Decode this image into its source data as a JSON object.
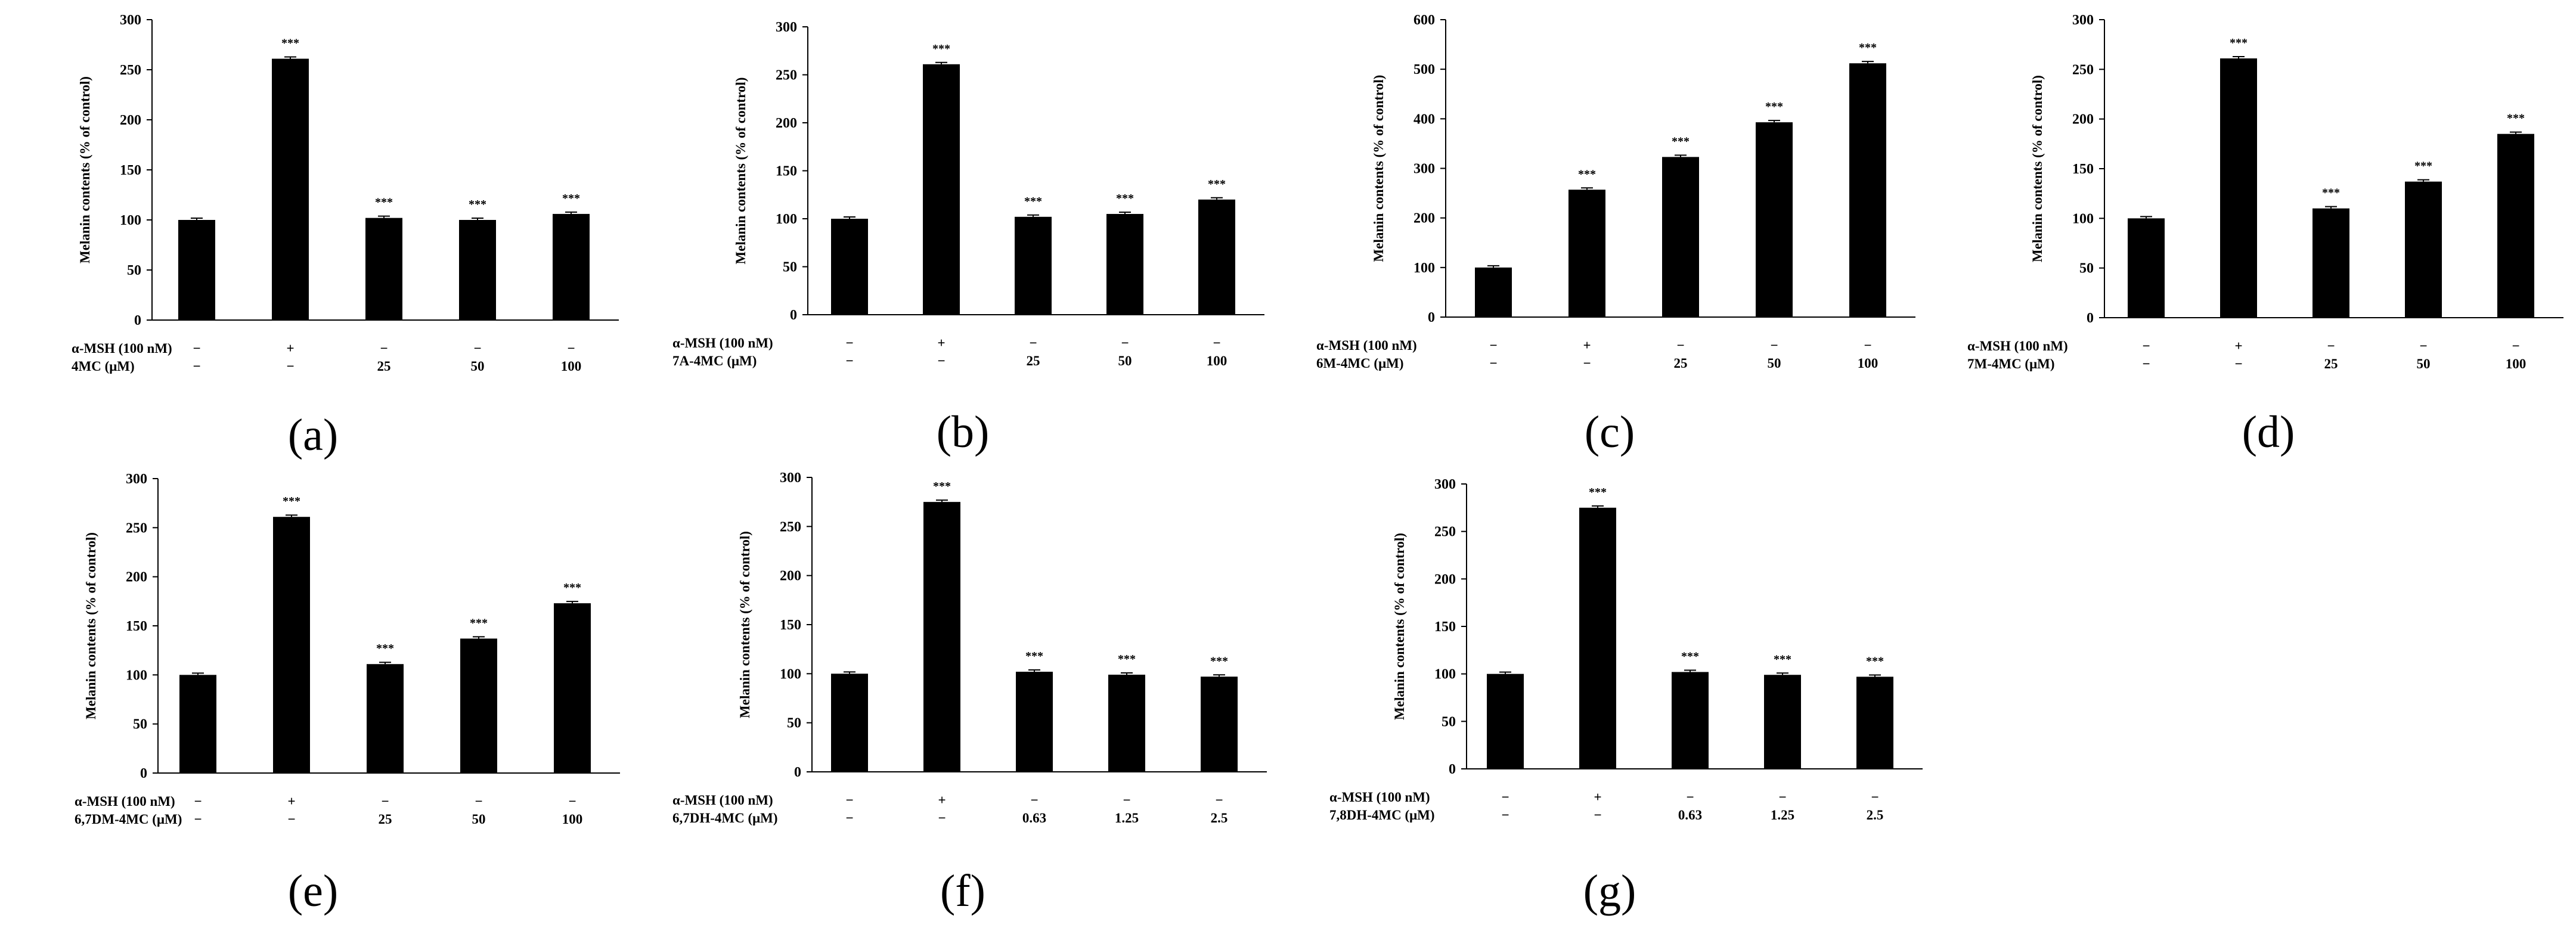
{
  "chart_data": [
    {
      "type": "bar",
      "panel_label": "(a)",
      "ylabel": "Melanin contents (% of control)",
      "ylim": [
        0,
        300
      ],
      "yticks": [
        "0",
        "50",
        "100",
        "150",
        "200",
        "250",
        "300"
      ],
      "condition_rows": [
        {
          "label": "α-MSH (100 nM)",
          "values": [
            "−",
            "+",
            "−",
            "−",
            "−"
          ]
        },
        {
          "label": "4MC (μM)",
          "values": [
            "−",
            "−",
            "25",
            "50",
            "100"
          ]
        }
      ],
      "values": [
        100,
        261,
        102,
        100,
        106
      ],
      "significance": [
        "",
        "***",
        "***",
        "***",
        "***"
      ]
    },
    {
      "type": "bar",
      "panel_label": "(b)",
      "ylabel": "Melanin contents (% of control)",
      "ylim": [
        0,
        300
      ],
      "yticks": [
        "0",
        "50",
        "100",
        "150",
        "200",
        "250",
        "300"
      ],
      "condition_rows": [
        {
          "label": "α-MSH (100 nM)",
          "values": [
            "−",
            "+",
            "−",
            "−",
            "−"
          ]
        },
        {
          "label": "7A-4MC (μM)",
          "values": [
            "−",
            "−",
            "25",
            "50",
            "100"
          ]
        }
      ],
      "values": [
        100,
        261,
        102,
        105,
        120
      ],
      "significance": [
        "",
        "***",
        "***",
        "***",
        "***"
      ]
    },
    {
      "type": "bar",
      "panel_label": "(c)",
      "ylabel": "Melanin contents (% of control)",
      "ylim": [
        0,
        600
      ],
      "yticks": [
        "0",
        "100",
        "200",
        "300",
        "400",
        "500",
        "600"
      ],
      "condition_rows": [
        {
          "label": "α-MSH (100 nM)",
          "values": [
            "−",
            "+",
            "−",
            "−",
            "−"
          ]
        },
        {
          "label": "6M-4MC (μM)",
          "values": [
            "−",
            "−",
            "25",
            "50",
            "100"
          ]
        }
      ],
      "values": [
        100,
        257,
        323,
        393,
        512
      ],
      "significance": [
        "",
        "***",
        "***",
        "***",
        "***"
      ]
    },
    {
      "type": "bar",
      "panel_label": "(d)",
      "ylabel": "Melanin contents (% of control)",
      "ylim": [
        0,
        300
      ],
      "yticks": [
        "0",
        "50",
        "100",
        "150",
        "200",
        "250",
        "300"
      ],
      "condition_rows": [
        {
          "label": "α-MSH (100 nM)",
          "values": [
            "−",
            "+",
            "−",
            "−",
            "−"
          ]
        },
        {
          "label": "7M-4MC (μM)",
          "values": [
            "−",
            "−",
            "25",
            "50",
            "100"
          ]
        }
      ],
      "values": [
        100,
        261,
        110,
        137,
        185
      ],
      "significance": [
        "",
        "***",
        "***",
        "***",
        "***"
      ]
    },
    {
      "type": "bar",
      "panel_label": "(e)",
      "ylabel": "Melanin contents (% of control)",
      "ylim": [
        0,
        300
      ],
      "yticks": [
        "0",
        "50",
        "100",
        "150",
        "200",
        "250",
        "300"
      ],
      "condition_rows": [
        {
          "label": "α-MSH (100 nM)",
          "values": [
            "−",
            "+",
            "−",
            "−",
            "−"
          ]
        },
        {
          "label": "6,7DM-4MC (μM)",
          "values": [
            "−",
            "−",
            "25",
            "50",
            "100"
          ]
        }
      ],
      "values": [
        100,
        261,
        111,
        137,
        173
      ],
      "significance": [
        "",
        "***",
        "***",
        "***",
        "***"
      ]
    },
    {
      "type": "bar",
      "panel_label": "(f)",
      "ylabel": "Melanin contents (% of control)",
      "ylim": [
        0,
        300
      ],
      "yticks": [
        "0",
        "50",
        "100",
        "150",
        "200",
        "250",
        "300"
      ],
      "condition_rows": [
        {
          "label": "α-MSH (100 nM)",
          "values": [
            "−",
            "+",
            "−",
            "−",
            "−"
          ]
        },
        {
          "label": "6,7DH-4MC (μM)",
          "values": [
            "−",
            "−",
            "0.63",
            "1.25",
            "2.5"
          ]
        }
      ],
      "values": [
        100,
        275,
        102,
        99,
        97
      ],
      "significance": [
        "",
        "***",
        "***",
        "***",
        "***"
      ]
    },
    {
      "type": "bar",
      "panel_label": "(g)",
      "ylabel": "Melanin contents (% of control)",
      "ylim": [
        0,
        300
      ],
      "yticks": [
        "0",
        "50",
        "100",
        "150",
        "200",
        "250",
        "300"
      ],
      "condition_rows": [
        {
          "label": "α-MSH (100 nM)",
          "values": [
            "−",
            "+",
            "−",
            "−",
            "−"
          ]
        },
        {
          "label": "7,8DH-4MC (μM)",
          "values": [
            "−",
            "−",
            "0.63",
            "1.25",
            "2.5"
          ]
        }
      ],
      "values": [
        100,
        275,
        102,
        99,
        97
      ],
      "significance": [
        "",
        "***",
        "***",
        "***",
        "***"
      ]
    }
  ]
}
